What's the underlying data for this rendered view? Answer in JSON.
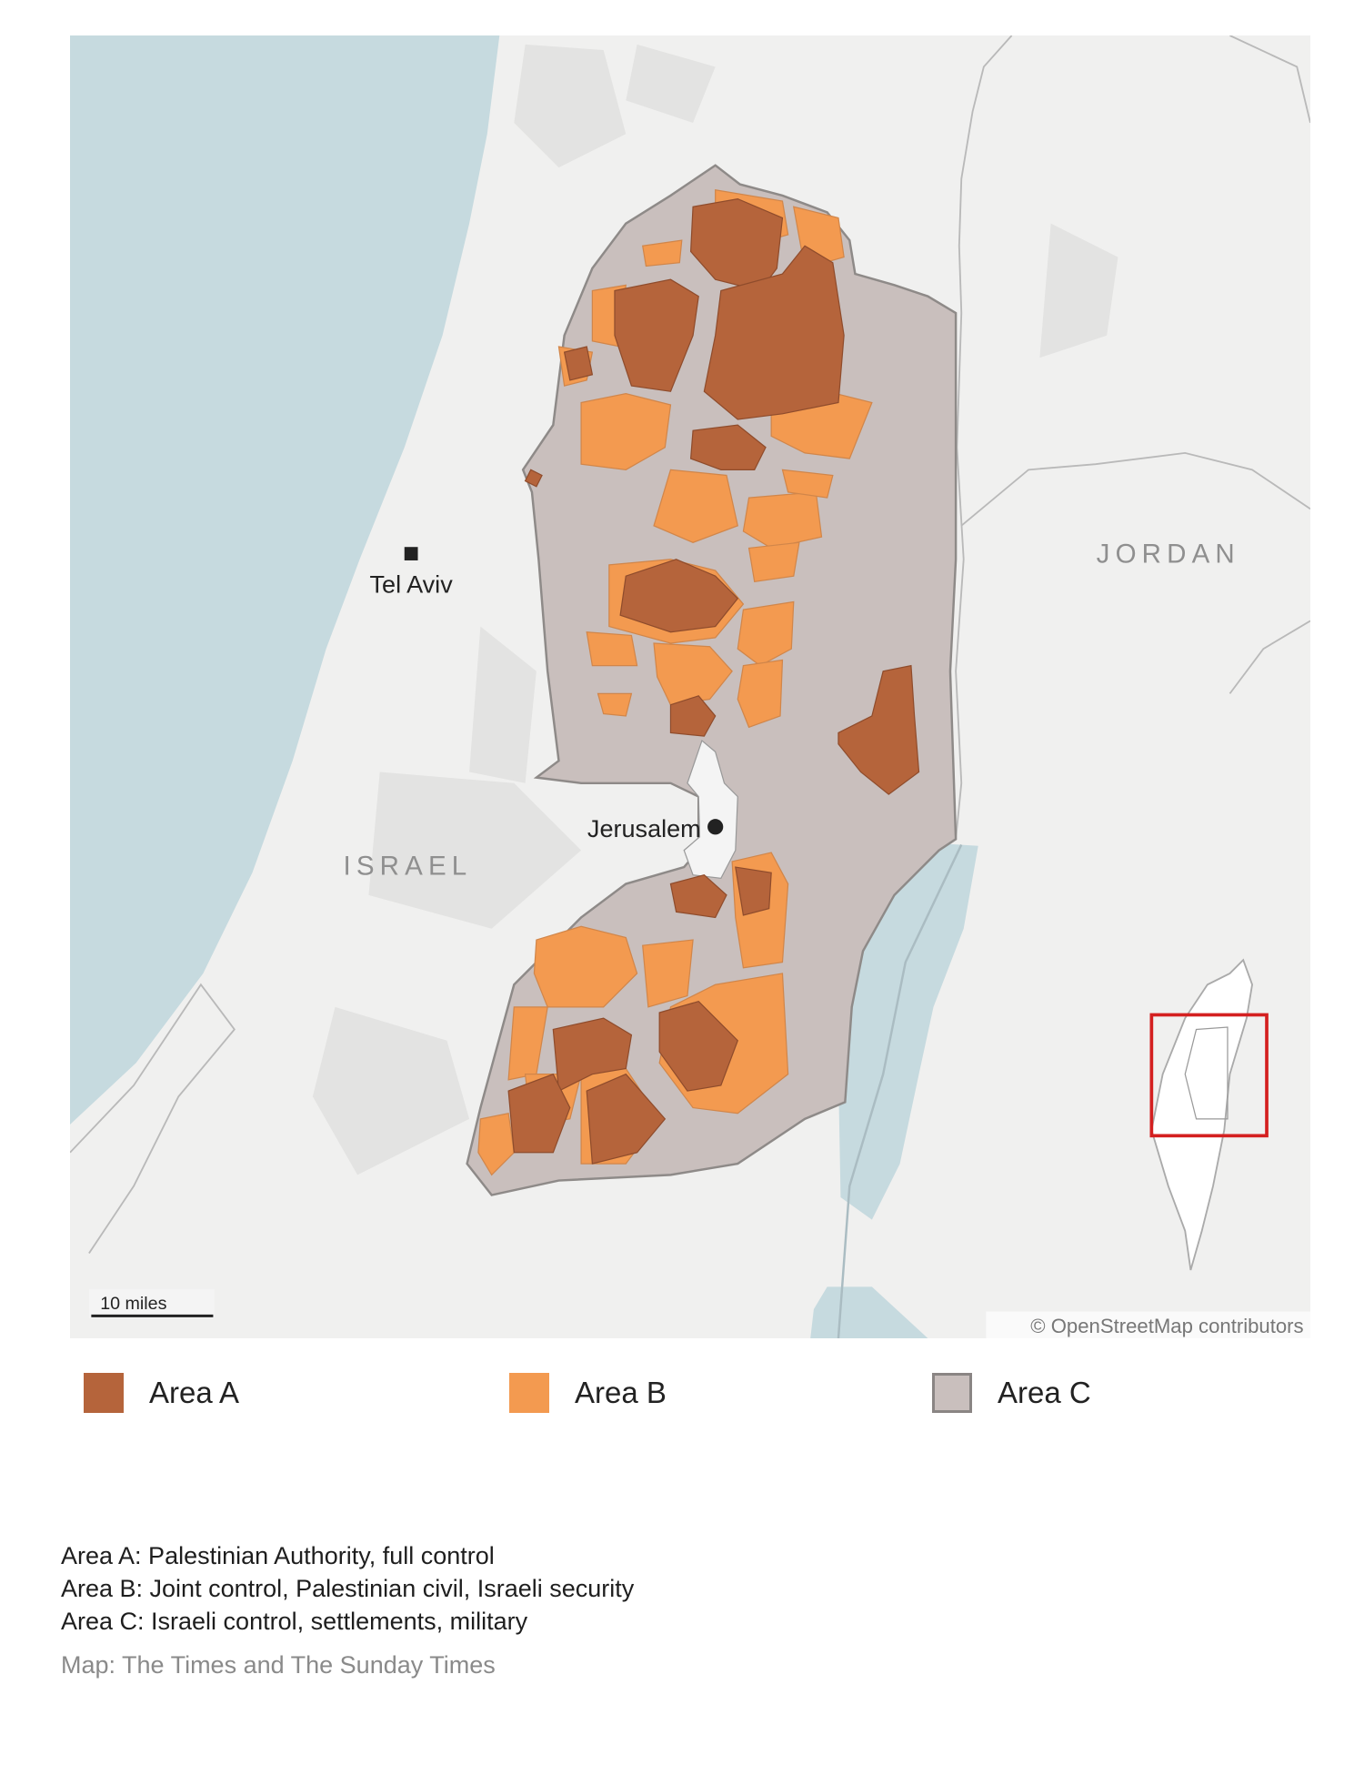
{
  "map": {
    "labels": {
      "tel_aviv": "Tel Aviv",
      "jerusalem": "Jerusalem",
      "israel": "ISRAEL",
      "jordan": "JORDAN"
    },
    "scale_bar": "10 miles",
    "attribution": "© OpenStreetMap contributors",
    "colors": {
      "sea": "#c6dadf",
      "land": "#f0f0ef",
      "area_a": "#b5643b",
      "area_b": "#f39a50",
      "area_c": "#c9bfbd",
      "inset_box": "#d42020"
    }
  },
  "legend": [
    {
      "label": "Area A",
      "color": "#b5643b"
    },
    {
      "label": "Area B",
      "color": "#f39a50"
    },
    {
      "label": "Area C",
      "color": "#c9bfbd"
    }
  ],
  "notes": [
    "Area A: Palestinian Authority, full control",
    "Area B: Joint control, Palestinian civil, Israeli security",
    "Area C: Israeli control, settlements, military"
  ],
  "source": "Map: The Times and The Sunday Times"
}
